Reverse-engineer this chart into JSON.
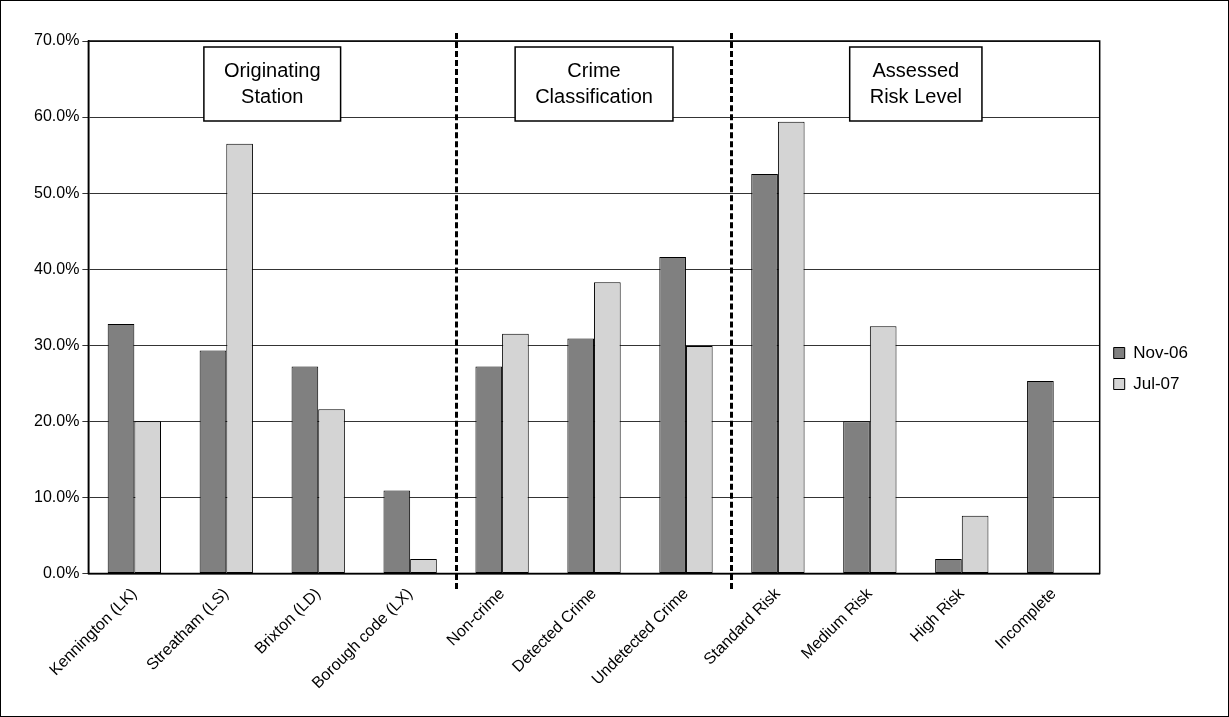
{
  "chart_data": {
    "type": "bar",
    "categories": [
      "Kennington (LK)",
      "Streatham (LS)",
      "Brixton (LD)",
      "Borough code (LX)",
      "Non-crime",
      "Detected Crime",
      "Undetected Crime",
      "Standard Risk",
      "Medium Risk",
      "High Risk",
      "Incomplete"
    ],
    "series": [
      {
        "name": "Nov-06",
        "color": "#808080",
        "values": [
          32.8,
          29.3,
          27.2,
          10.9,
          27.2,
          30.9,
          41.6,
          52.5,
          20.0,
          1.9,
          25.3
        ]
      },
      {
        "name": "Jul-07",
        "color": "#d4d4d4",
        "values": [
          20.0,
          56.5,
          21.6,
          1.9,
          31.5,
          38.3,
          29.9,
          59.4,
          32.5,
          7.6,
          null
        ]
      }
    ],
    "ylim": [
      0,
      70
    ],
    "yticks": [
      {
        "value": 0,
        "label": "0.0%"
      },
      {
        "value": 10,
        "label": "10.0%"
      },
      {
        "value": 20,
        "label": "20.0%"
      },
      {
        "value": 30,
        "label": "30.0%"
      },
      {
        "value": 40,
        "label": "40.0%"
      },
      {
        "value": 50,
        "label": "50.0%"
      },
      {
        "value": 60,
        "label": "60.0%"
      },
      {
        "value": 70,
        "label": "70.0%"
      }
    ],
    "grid": "y",
    "legend": "right",
    "annotations": [
      "Originating Station",
      "Crime Classification",
      "Assessed Risk Level"
    ]
  }
}
